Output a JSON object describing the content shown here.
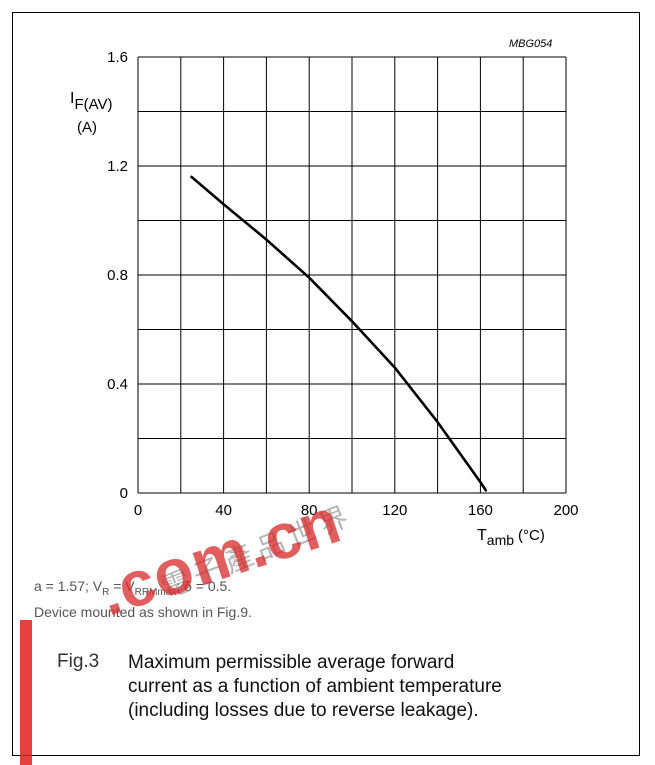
{
  "chart_data": {
    "type": "line",
    "figure_code": "MBG054",
    "xlabel": "T",
    "xlabel_sub": "amb",
    "xlabel_unit": "(°C)",
    "ylabel": "I",
    "ylabel_sub": "F(AV)",
    "ylabel_unit": "(A)",
    "xlim": [
      0,
      200
    ],
    "ylim": [
      0,
      1.6
    ],
    "x_ticks": [
      "0",
      "40",
      "80",
      "120",
      "160",
      "200"
    ],
    "y_ticks": [
      "0",
      "0.4",
      "0.8",
      "1.2",
      "1.6"
    ],
    "grid": true,
    "series": [
      {
        "x": [
          25,
          40,
          60,
          80,
          100,
          120,
          140,
          150,
          160,
          162.5
        ],
        "y": [
          1.16,
          1.06,
          0.93,
          0.79,
          0.63,
          0.46,
          0.26,
          0.15,
          0.04,
          0.01
        ]
      }
    ]
  },
  "conditions": {
    "a": "a = 1.57; V",
    "r_sub": "R",
    "eq": " = V",
    "rrm_sub": "RRMmax",
    "delta": "; δ = 0.5.",
    "mounting": "Device mounted as shown in Fig.9."
  },
  "caption": {
    "label": "Fig.3",
    "lines": [
      "Maximum permissible average forward",
      "current as a function of ambient temperature",
      "(including losses due to reverse leakage)."
    ]
  },
  "watermark": {
    "text": ".com.cn",
    "glyphs": "電子產品世界",
    "color": "#e02020"
  }
}
